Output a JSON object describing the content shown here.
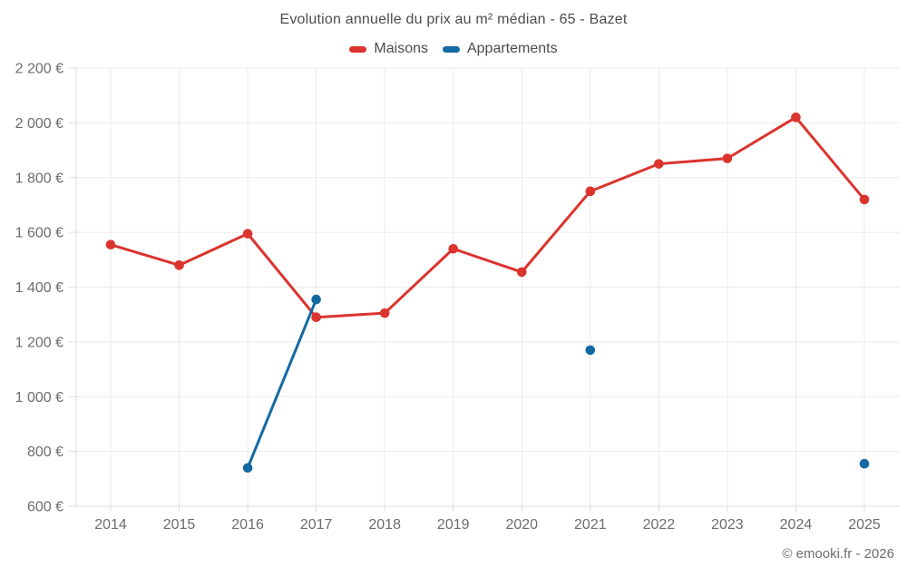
{
  "page": {
    "title": "Evolution annuelle du prix au m² médian - 65 - Bazet",
    "footer": "© emooki.fr - 2026"
  },
  "legend": {
    "items": [
      {
        "label": "Maisons",
        "color": "#db342e"
      },
      {
        "label": "Appartements",
        "color": "#1569a2"
      }
    ]
  },
  "chart_data": {
    "type": "line",
    "title": "Evolution annuelle du prix au m² médian - 65 - Bazet",
    "categories": [
      "2014",
      "2015",
      "2016",
      "2017",
      "2018",
      "2019",
      "2020",
      "2021",
      "2022",
      "2023",
      "2024",
      "2025"
    ],
    "series": [
      {
        "name": "Maisons",
        "color": "#db342e",
        "values": [
          1555,
          1480,
          1595,
          1290,
          1305,
          1540,
          1455,
          1750,
          1850,
          1870,
          2020,
          1720
        ]
      },
      {
        "name": "Appartements",
        "color": "#1569a2",
        "values": [
          null,
          null,
          740,
          1355,
          null,
          null,
          null,
          1170,
          null,
          null,
          null,
          755
        ]
      }
    ],
    "ylim": [
      600,
      2200
    ],
    "yticks": [
      600,
      800,
      1000,
      1200,
      1400,
      1600,
      1800,
      2000,
      2200
    ],
    "ytick_labels": [
      "600 €",
      "800 €",
      "1 000 €",
      "1 200 €",
      "1 400 €",
      "1 600 €",
      "1 800 €",
      "2 000 €",
      "2 200 €"
    ],
    "y_suffix": " €",
    "xlabel": "",
    "ylabel": "",
    "grid": true,
    "legend_position": "top",
    "grid_color": "#ebebeb",
    "axis_color": "#dcdcdc",
    "tick_text_color": "#6d6d6d"
  }
}
